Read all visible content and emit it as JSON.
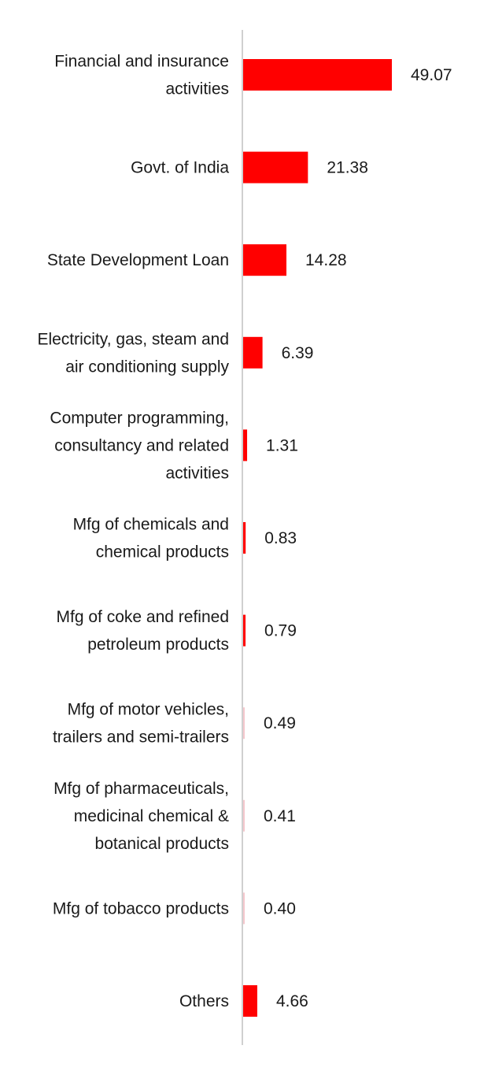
{
  "chart_data": {
    "type": "bar",
    "orientation": "horizontal",
    "title": "",
    "xlabel": "",
    "ylabel": "",
    "categories": [
      [
        "Financial and insurance",
        "activities"
      ],
      [
        "Govt. of India"
      ],
      [
        "State Development Loan"
      ],
      [
        "Electricity, gas, steam and",
        "air conditioning supply"
      ],
      [
        "Computer programming,",
        "consultancy and related",
        "activities"
      ],
      [
        "Mfg of chemicals and",
        "chemical products"
      ],
      [
        "Mfg of coke and refined",
        "petroleum products"
      ],
      [
        "Mfg of motor vehicles,",
        "trailers and semi-trailers"
      ],
      [
        "Mfg of pharmaceuticals,",
        "medicinal chemical &",
        "botanical products"
      ],
      [
        "Mfg of tobacco products"
      ],
      [
        "Others"
      ]
    ],
    "values": [
      49.07,
      21.38,
      14.28,
      6.39,
      1.31,
      0.83,
      0.79,
      0.49,
      0.41,
      0.4,
      4.66
    ],
    "value_labels": [
      "49.07",
      "21.38",
      "14.28",
      "6.39",
      "1.31",
      "0.83",
      "0.79",
      "0.49",
      "0.41",
      "0.40",
      "4.66"
    ],
    "xlim": [
      0,
      49.07
    ],
    "grid": false,
    "legend": "none",
    "bar_color": "#ff0000",
    "small_bar_color": "#f4c7cc",
    "axis_color": "#d0d0d0"
  }
}
